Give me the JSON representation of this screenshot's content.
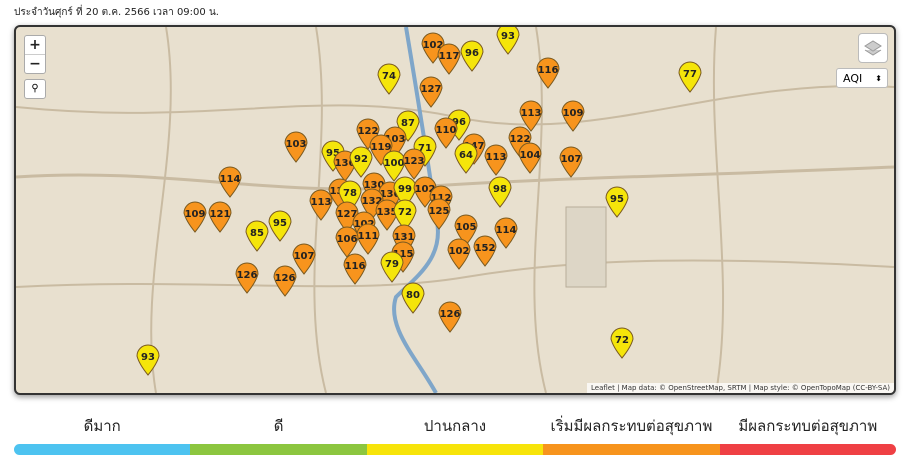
{
  "header": {
    "date_text": "ประจำวันศุกร์ ที่ 20 ต.ค. 2566 เวลา 09:00 น."
  },
  "map": {
    "zoom_in": "+",
    "zoom_out": "−",
    "metric_select": "AQI",
    "attribution": "Leaflet | Map data: © OpenStreetMap, SRTM | Map style: © OpenTopoMap (CC-BY-SA)",
    "markers": [
      {
        "value": 102,
        "color": "#f7941d"
      },
      {
        "value": 117,
        "color": "#f7941d"
      },
      {
        "value": 96,
        "color": "#f5e50a"
      },
      {
        "value": 93,
        "color": "#f5e50a"
      },
      {
        "value": 116,
        "color": "#f7941d"
      },
      {
        "value": 77,
        "color": "#f5e50a"
      },
      {
        "value": 74,
        "color": "#f5e50a"
      },
      {
        "value": 127,
        "color": "#f7941d"
      },
      {
        "value": 113,
        "color": "#f7941d"
      },
      {
        "value": 109,
        "color": "#f7941d"
      },
      {
        "value": 87,
        "color": "#f5e50a"
      },
      {
        "value": 96,
        "color": "#f5e50a"
      },
      {
        "value": 110,
        "color": "#f7941d"
      },
      {
        "value": 122,
        "color": "#f7941d"
      },
      {
        "value": 103,
        "color": "#f7941d"
      },
      {
        "value": 103,
        "color": "#f7941d"
      },
      {
        "value": 122,
        "color": "#f7941d"
      },
      {
        "value": 147,
        "color": "#f7941d"
      },
      {
        "value": 119,
        "color": "#f7941d"
      },
      {
        "value": 71,
        "color": "#f5e50a"
      },
      {
        "value": 95,
        "color": "#f5e50a"
      },
      {
        "value": 64,
        "color": "#f5e50a"
      },
      {
        "value": 113,
        "color": "#f7941d"
      },
      {
        "value": 104,
        "color": "#f7941d"
      },
      {
        "value": 107,
        "color": "#f7941d"
      },
      {
        "value": 136,
        "color": "#f7941d"
      },
      {
        "value": 92,
        "color": "#f5e50a"
      },
      {
        "value": 100,
        "color": "#f5e50a"
      },
      {
        "value": 123,
        "color": "#f7941d"
      },
      {
        "value": 114,
        "color": "#f7941d"
      },
      {
        "value": 133,
        "color": "#f7941d"
      },
      {
        "value": 78,
        "color": "#f5e50a"
      },
      {
        "value": 130,
        "color": "#f7941d"
      },
      {
        "value": 136,
        "color": "#f7941d"
      },
      {
        "value": 99,
        "color": "#f5e50a"
      },
      {
        "value": 102,
        "color": "#f7941d"
      },
      {
        "value": 98,
        "color": "#f5e50a"
      },
      {
        "value": 95,
        "color": "#f5e50a"
      },
      {
        "value": 132,
        "color": "#f7941d"
      },
      {
        "value": 113,
        "color": "#f7941d"
      },
      {
        "value": 112,
        "color": "#f7941d"
      },
      {
        "value": 109,
        "color": "#f7941d"
      },
      {
        "value": 121,
        "color": "#f7941d"
      },
      {
        "value": 127,
        "color": "#f7941d"
      },
      {
        "value": 135,
        "color": "#f7941d"
      },
      {
        "value": 72,
        "color": "#f5e50a"
      },
      {
        "value": 125,
        "color": "#f7941d"
      },
      {
        "value": 95,
        "color": "#f5e50a"
      },
      {
        "value": 102,
        "color": "#f7941d"
      },
      {
        "value": 105,
        "color": "#f7941d"
      },
      {
        "value": 114,
        "color": "#f7941d"
      },
      {
        "value": 85,
        "color": "#f5e50a"
      },
      {
        "value": 111,
        "color": "#f7941d"
      },
      {
        "value": 131,
        "color": "#f7941d"
      },
      {
        "value": 106,
        "color": "#f7941d"
      },
      {
        "value": 102,
        "color": "#f7941d"
      },
      {
        "value": 152,
        "color": "#f7941d"
      },
      {
        "value": 107,
        "color": "#f7941d"
      },
      {
        "value": 115,
        "color": "#f7941d"
      },
      {
        "value": 116,
        "color": "#f7941d"
      },
      {
        "value": 79,
        "color": "#f5e50a"
      },
      {
        "value": 126,
        "color": "#f7941d"
      },
      {
        "value": 126,
        "color": "#f7941d"
      },
      {
        "value": 80,
        "color": "#f5e50a"
      },
      {
        "value": 126,
        "color": "#f7941d"
      },
      {
        "value": 72,
        "color": "#f5e50a"
      },
      {
        "value": 93,
        "color": "#f5e50a"
      }
    ]
  },
  "legend": [
    {
      "label": "ดีมาก",
      "color": "#4dc3f0"
    },
    {
      "label": "ดี",
      "color": "#8cc63f"
    },
    {
      "label": "ปานกลาง",
      "color": "#f7e40a"
    },
    {
      "label": "เริ่มมีผลกระทบต่อสุขภาพ",
      "color": "#f7941d"
    },
    {
      "label": "มีผลกระทบต่อสุขภาพ",
      "color": "#ef4044"
    }
  ]
}
